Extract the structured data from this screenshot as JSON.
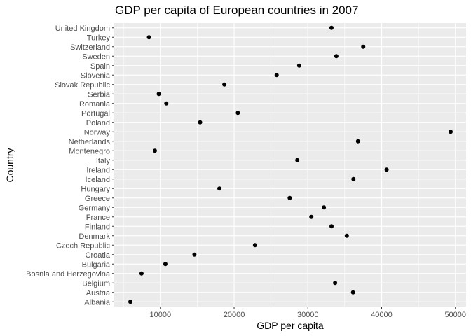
{
  "chart_data": {
    "type": "scatter",
    "title": "GDP per capita of European countries in 2007",
    "xlabel": "GDP per capita",
    "ylabel": "Country",
    "xlim": [
      3750,
      51450
    ],
    "x_ticks": [
      10000,
      20000,
      30000,
      40000,
      50000
    ],
    "x_tick_labels": [
      "10000",
      "20000",
      "30000",
      "40000",
      "50000"
    ],
    "grid": true,
    "panel_background": "#ebebeb",
    "point_color": "#000000",
    "categories": [
      "Albania",
      "Austria",
      "Belgium",
      "Bosnia and Herzegovina",
      "Bulgaria",
      "Croatia",
      "Czech Republic",
      "Denmark",
      "Finland",
      "France",
      "Germany",
      "Greece",
      "Hungary",
      "Iceland",
      "Ireland",
      "Italy",
      "Montenegro",
      "Netherlands",
      "Norway",
      "Poland",
      "Portugal",
      "Romania",
      "Serbia",
      "Slovak Republic",
      "Slovenia",
      "Spain",
      "Sweden",
      "Switzerland",
      "Turkey",
      "United Kingdom"
    ],
    "values": [
      5937,
      36126,
      33693,
      7446,
      10681,
      14619,
      22833,
      35278,
      33207,
      30470,
      32170,
      27538,
      18009,
      36181,
      40676,
      28570,
      9254,
      36798,
      49357,
      15390,
      20510,
      10808,
      9787,
      18678,
      25768,
      28821,
      33860,
      37506,
      8458,
      33203
    ]
  }
}
